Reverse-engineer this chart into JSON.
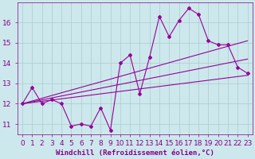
{
  "xlabel": "Windchill (Refroidissement éolien,°C)",
  "bg_color": "#cce8ec",
  "grid_color": "#aacccc",
  "line_color": "#990099",
  "x_data": [
    0,
    1,
    2,
    3,
    4,
    5,
    6,
    7,
    8,
    9,
    10,
    11,
    12,
    13,
    14,
    15,
    16,
    17,
    18,
    19,
    20,
    21,
    22,
    23
  ],
  "y_main": [
    12.0,
    12.8,
    12.0,
    12.2,
    12.0,
    10.9,
    11.0,
    10.9,
    11.8,
    10.7,
    14.0,
    14.4,
    12.5,
    14.3,
    16.3,
    15.3,
    16.1,
    16.7,
    16.4,
    15.1,
    14.9,
    14.9,
    13.8,
    13.5
  ],
  "reg1_start": 12.0,
  "reg1_end": 13.4,
  "reg2_start": 12.0,
  "reg2_end": 15.1,
  "reg3_start": 12.0,
  "reg3_end": 14.2,
  "xlim": [
    -0.5,
    23.5
  ],
  "ylim": [
    10.5,
    17.0
  ],
  "yticks": [
    11,
    12,
    13,
    14,
    15,
    16
  ],
  "xticks": [
    0,
    1,
    2,
    3,
    4,
    5,
    6,
    7,
    8,
    9,
    10,
    11,
    12,
    13,
    14,
    15,
    16,
    17,
    18,
    19,
    20,
    21,
    22,
    23
  ],
  "fontsize": 6.5
}
